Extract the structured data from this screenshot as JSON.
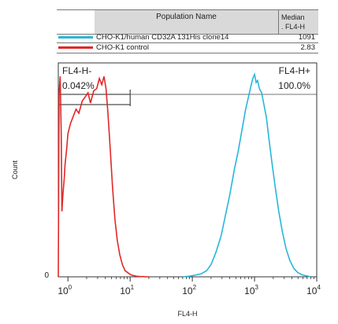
{
  "table": {
    "header": {
      "name": "Population Name",
      "median_line1": "Median",
      "median_line2": ". FL4-H"
    },
    "rows": [
      {
        "name": "CHO-K1/human CD32A 131His clone14",
        "median": "1091",
        "color": "#29b6d8"
      },
      {
        "name": "CHO-K1 control",
        "median": "2.83",
        "color": "#e02828"
      }
    ]
  },
  "chart_data": {
    "type": "line",
    "xscale": "log",
    "xlim": [
      0.7,
      10000
    ],
    "ylim": [
      0,
      100
    ],
    "xlabel": "FL4-H",
    "ylabel": "Count",
    "yticks": [
      "0"
    ],
    "xticks": [
      {
        "value": 1,
        "base": "10",
        "exp": "0"
      },
      {
        "value": 10,
        "base": "10",
        "exp": "1"
      },
      {
        "value": 100,
        "base": "10",
        "exp": "2"
      },
      {
        "value": 1000,
        "base": "10",
        "exp": "3"
      },
      {
        "value": 10000,
        "base": "10",
        "exp": "4"
      }
    ],
    "gates": [
      {
        "label": "FL4-H-",
        "percent": "0.042%",
        "range": [
          0.7,
          10
        ]
      },
      {
        "label": "FL4-H+",
        "percent": "100.0%",
        "range": [
          10,
          10000
        ]
      }
    ],
    "series": [
      {
        "name": "CHO-K1 control",
        "color": "#e02828",
        "x": [
          0.7,
          0.72,
          0.75,
          0.78,
          0.8,
          0.83,
          0.87,
          0.9,
          0.95,
          1.0,
          1.1,
          1.2,
          1.35,
          1.5,
          1.7,
          1.9,
          2.1,
          2.3,
          2.6,
          2.9,
          3.2,
          3.5,
          3.8,
          4.1,
          4.4,
          4.8,
          5.2,
          5.7,
          6.2,
          6.8,
          7.5,
          8.3,
          9.2,
          10.2,
          11.3,
          12.5,
          14,
          16,
          18,
          20
        ],
        "y": [
          0,
          90,
          98,
          70,
          32,
          40,
          48,
          55,
          62,
          70,
          75,
          78,
          82,
          80,
          86,
          88,
          90,
          85,
          91,
          92,
          97,
          94,
          98,
          92,
          80,
          62,
          44,
          28,
          18,
          11,
          6,
          3,
          2,
          1,
          0.6,
          0.3,
          0.2,
          0.1,
          0,
          0
        ]
      },
      {
        "name": "CHO-K1/human CD32A 131His clone14",
        "color": "#29b6d8",
        "x": [
          70,
          90,
          110,
          140,
          170,
          200,
          240,
          290,
          340,
          400,
          470,
          550,
          630,
          720,
          800,
          870,
          940,
          1000,
          1060,
          1120,
          1200,
          1300,
          1420,
          1550,
          1700,
          1900,
          2150,
          2450,
          2800,
          3200,
          3700,
          4300,
          5000,
          5800,
          6500,
          7200,
          8000
        ],
        "y": [
          0,
          0.3,
          0.8,
          1.5,
          3,
          6,
          12,
          20,
          30,
          40,
          52,
          62,
          72,
          82,
          88,
          93,
          97,
          99,
          95,
          96,
          92,
          90,
          84,
          78,
          68,
          56,
          44,
          32,
          22,
          14,
          8,
          4,
          2,
          1,
          0.6,
          0.3,
          0
        ]
      }
    ]
  }
}
